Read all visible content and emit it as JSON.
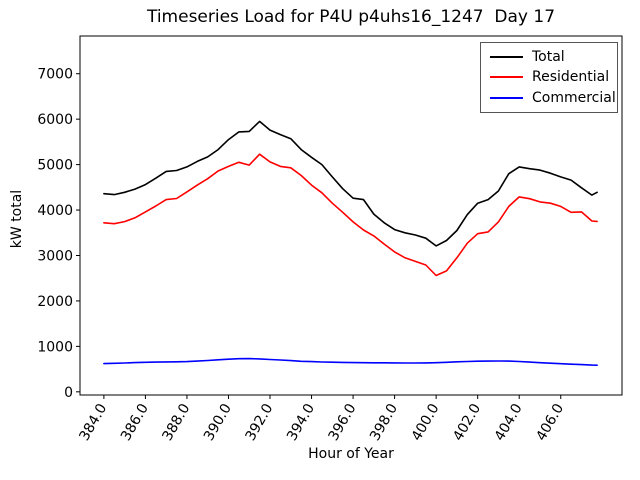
{
  "chart_data": {
    "type": "line",
    "title": "Timeseries Load for P4U p4uhs16_1247  Day 17",
    "xlabel": "Hour of Year",
    "ylabel": "kW total",
    "grid": false,
    "legend_position": "upper-right",
    "xlim": [
      382.85,
      408.95
    ],
    "ylim": [
      -70,
      7830
    ],
    "xtick_values": [
      384,
      386,
      388,
      390,
      392,
      394,
      396,
      398,
      400,
      402,
      404,
      406
    ],
    "xtick_labels": [
      "384.0",
      "386.0",
      "388.0",
      "390.0",
      "392.0",
      "394.0",
      "396.0",
      "398.0",
      "400.0",
      "402.0",
      "404.0",
      "406.0"
    ],
    "ytick_values": [
      0,
      1000,
      2000,
      3000,
      4000,
      5000,
      6000,
      7000
    ],
    "ytick_labels": [
      "0",
      "1000",
      "2000",
      "3000",
      "4000",
      "5000",
      "6000",
      "7000"
    ],
    "x": [
      384.0,
      384.5,
      385.0,
      385.5,
      386.0,
      386.5,
      387.0,
      387.5,
      388.0,
      388.5,
      389.0,
      389.5,
      390.0,
      390.5,
      391.0,
      391.5,
      392.0,
      392.5,
      393.0,
      393.5,
      394.0,
      394.5,
      395.0,
      395.5,
      396.0,
      396.5,
      397.0,
      397.5,
      398.0,
      398.5,
      399.0,
      399.5,
      400.0,
      400.5,
      401.0,
      401.5,
      402.0,
      402.5,
      403.0,
      403.5,
      404.0,
      404.5,
      405.0,
      405.5,
      406.0,
      406.5,
      407.0,
      407.5,
      407.75
    ],
    "series": [
      {
        "name": "Total",
        "color": "#000000",
        "values": [
          4360,
          4340,
          4390,
          4460,
          4560,
          4700,
          4850,
          4870,
          4950,
          5070,
          5170,
          5330,
          5550,
          5720,
          5730,
          5950,
          5760,
          5660,
          5570,
          5330,
          5160,
          5000,
          4730,
          4470,
          4260,
          4230,
          3910,
          3720,
          3570,
          3500,
          3450,
          3380,
          3210,
          3330,
          3550,
          3900,
          4150,
          4230,
          4420,
          4800,
          4950,
          4910,
          4880,
          4810,
          4730,
          4660,
          4490,
          4330,
          4390
        ]
      },
      {
        "name": "Residential",
        "color": "#ff0000",
        "values": [
          3720,
          3700,
          3745,
          3830,
          3960,
          4090,
          4230,
          4255,
          4400,
          4550,
          4690,
          4860,
          4960,
          5050,
          4990,
          5230,
          5060,
          4960,
          4930,
          4760,
          4550,
          4380,
          4150,
          3950,
          3740,
          3560,
          3430,
          3250,
          3080,
          2950,
          2870,
          2790,
          2560,
          2660,
          2950,
          3270,
          3480,
          3520,
          3740,
          4080,
          4290,
          4250,
          4180,
          4150,
          4080,
          3950,
          3960,
          3760,
          3750
        ]
      },
      {
        "name": "Commercial",
        "color": "#0000ff",
        "values": [
          620,
          628,
          635,
          642,
          650,
          655,
          658,
          660,
          666,
          676,
          690,
          705,
          718,
          728,
          730,
          724,
          712,
          700,
          686,
          672,
          664,
          657,
          651,
          647,
          643,
          640,
          638,
          638,
          637,
          635,
          634,
          636,
          641,
          650,
          660,
          668,
          673,
          676,
          678,
          675,
          667,
          655,
          641,
          630,
          618,
          608,
          598,
          588,
          585
        ]
      }
    ]
  }
}
